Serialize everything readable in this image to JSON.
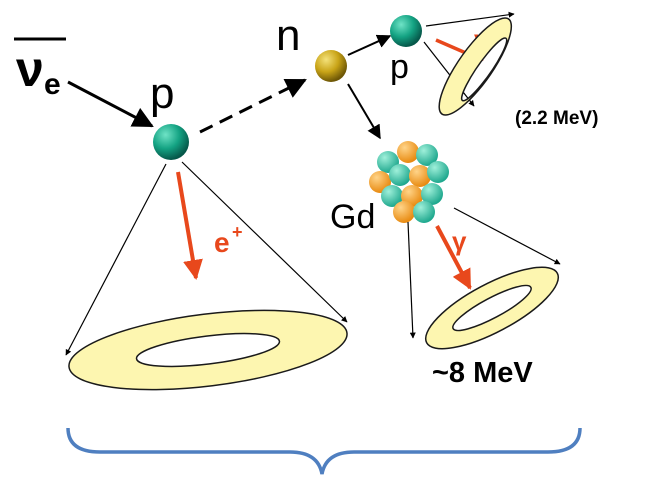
{
  "labels": {
    "antineutrino": "ν",
    "antineutrino_sub": "e",
    "proton": "p",
    "neutron": "n",
    "proton2": "p",
    "positron": "e",
    "positron_sup": "+",
    "gamma1": "γ",
    "gamma2": "γ",
    "gd": "Gd",
    "energy_capture_h": "(2.2 MeV)",
    "energy_capture_gd": "~8 MeV"
  },
  "colors": {
    "proton": "#0f9a7e",
    "neutron": "#c9a417",
    "gd_orange": "#f5a623",
    "gd_teal": "#2ec4a6",
    "ring_fill": "#fdf6b0",
    "ring_stroke": "#1a1a1a",
    "arrow_red": "#e8481c",
    "brace": "#4f7fc0"
  }
}
